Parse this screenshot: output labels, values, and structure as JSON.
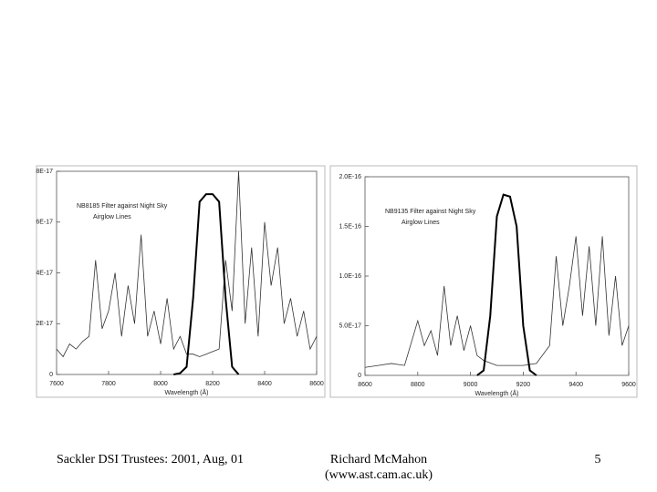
{
  "chart_data": [
    {
      "type": "line",
      "annotation": [
        "NB8185 Filter against Night Sky",
        "Airglow Lines"
      ],
      "xlabel": "Wavelength (Å)",
      "xlim": [
        7600,
        8600
      ],
      "xticks": [
        7600,
        7800,
        8000,
        8200,
        8400,
        8600
      ],
      "ylim": [
        0,
        8e-17
      ],
      "yticks": [
        {
          "value": 0,
          "label": "0"
        },
        {
          "value": 2e-17,
          "label": "2E-17"
        },
        {
          "value": 4e-17,
          "label": "4E-17"
        },
        {
          "value": 6e-17,
          "label": "6E-17"
        },
        {
          "value": 8e-17,
          "label": "8E-17"
        }
      ],
      "series": [
        {
          "color": "#333",
          "width": 0.8,
          "x": [
            7600,
            7625,
            7650,
            7675,
            7700,
            7725,
            7750,
            7775,
            7800,
            7825,
            7850,
            7875,
            7900,
            7925,
            7950,
            7975,
            8000,
            8025,
            8050,
            8075,
            8100,
            8125,
            8150,
            8175,
            8200,
            8225,
            8250,
            8275,
            8300,
            8325,
            8350,
            8375,
            8400,
            8425,
            8450,
            8475,
            8500,
            8525,
            8550,
            8575,
            8600
          ],
          "values": [
            1e-17,
            7e-18,
            1.2e-17,
            1e-17,
            1.3e-17,
            1.5e-17,
            4.5e-17,
            1.8e-17,
            2.5e-17,
            4e-17,
            1.5e-17,
            3.5e-17,
            2e-17,
            5.5e-17,
            1.5e-17,
            2.5e-17,
            1.2e-17,
            3e-17,
            1e-17,
            1.5e-17,
            8e-18,
            8e-18,
            7e-18,
            8e-18,
            9e-18,
            1e-17,
            4.5e-17,
            2.5e-17,
            8e-17,
            2e-17,
            5e-17,
            1.5e-17,
            6e-17,
            3.5e-17,
            5e-17,
            2e-17,
            3e-17,
            1.5e-17,
            2.5e-17,
            1e-17,
            1.5e-17
          ]
        },
        {
          "color": "#000",
          "width": 2,
          "x": [
            8050,
            8075,
            8100,
            8125,
            8150,
            8175,
            8200,
            8225,
            8250,
            8275,
            8300
          ],
          "values": [
            0,
            5e-19,
            3e-18,
            3e-17,
            6.8e-17,
            7.1e-17,
            7.1e-17,
            6.8e-17,
            3e-17,
            3e-18,
            0
          ]
        }
      ]
    },
    {
      "type": "line",
      "annotation": [
        "NB9135 Filter against Night Sky",
        "Airglow Lines"
      ],
      "xlabel": "Wavelength (Å)",
      "xlim": [
        8600,
        9600
      ],
      "xticks": [
        8600,
        8800,
        9000,
        9200,
        9400,
        9600
      ],
      "ylim": [
        0,
        2e-16
      ],
      "yticks": [
        {
          "value": 0,
          "label": "0"
        },
        {
          "value": 5e-17,
          "label": "5.0E-17"
        },
        {
          "value": 1e-16,
          "label": "1.0E-16"
        },
        {
          "value": 1.5e-16,
          "label": "1.5E-16"
        },
        {
          "value": 2e-16,
          "label": "2.0E-16"
        }
      ],
      "series": [
        {
          "color": "#333",
          "width": 0.8,
          "x": [
            8600,
            8650,
            8700,
            8750,
            8800,
            8825,
            8850,
            8875,
            8900,
            8925,
            8950,
            8975,
            9000,
            9025,
            9050,
            9100,
            9150,
            9200,
            9250,
            9300,
            9325,
            9350,
            9375,
            9400,
            9425,
            9450,
            9475,
            9500,
            9525,
            9550,
            9575,
            9600
          ],
          "values": [
            8e-18,
            1e-17,
            1.2e-17,
            1e-17,
            5.5e-17,
            3e-17,
            4.5e-17,
            2e-17,
            9e-17,
            3e-17,
            6e-17,
            2.5e-17,
            5e-17,
            2e-17,
            1.5e-17,
            1e-17,
            1e-17,
            1e-17,
            1.2e-17,
            3e-17,
            1.2e-16,
            5e-17,
            9e-17,
            1.4e-16,
            6e-17,
            1.3e-16,
            5e-17,
            1.4e-16,
            4e-17,
            1e-16,
            3e-17,
            5e-17
          ]
        },
        {
          "color": "#000",
          "width": 2,
          "x": [
            9025,
            9050,
            9075,
            9100,
            9125,
            9150,
            9175,
            9200,
            9225,
            9250
          ],
          "values": [
            0,
            5e-18,
            6e-17,
            1.6e-16,
            1.82e-16,
            1.8e-16,
            1.5e-16,
            5e-17,
            5e-18,
            0
          ]
        }
      ]
    }
  ],
  "footer": {
    "left": "Sackler DSI Trustees: 2001, Aug, 01",
    "center": [
      "Richard McMahon",
      "(www.ast.cam.ac.uk)"
    ],
    "page": "5"
  }
}
